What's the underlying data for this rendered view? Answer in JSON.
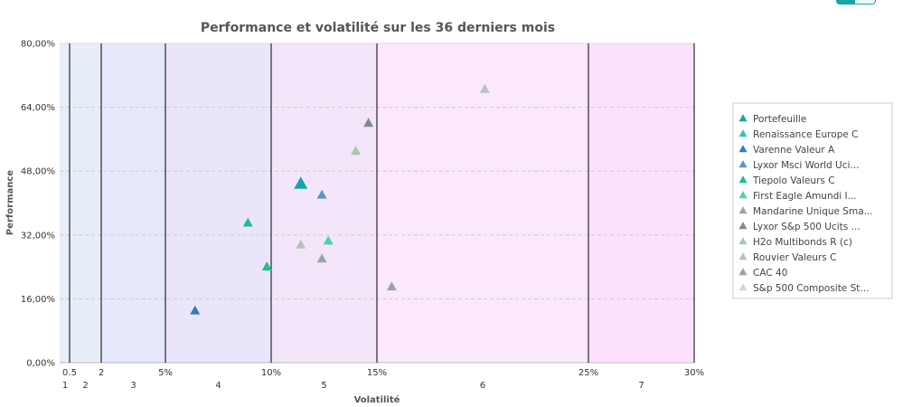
{
  "colors": {
    "bands": [
      "#e8eef8",
      "#e6e8fc",
      "#ebe5fb",
      "#f3e6fa",
      "#fbe8fb",
      "#fde0fd"
    ],
    "band_lines": "#000000",
    "grid": "#cccccc"
  },
  "chart_data": {
    "type": "scatter",
    "title": "Performance et volatilité sur les 36 derniers mois",
    "xlabel": "Volatilité",
    "ylabel": "Performance",
    "xaxis": {
      "boundaries": [
        0,
        0.5,
        2,
        5,
        10,
        15,
        25,
        30
      ],
      "ticks": [
        {
          "value": 0.5,
          "label": "0.5"
        },
        {
          "value": 2,
          "label": "2"
        },
        {
          "value": 5,
          "label": "5%"
        },
        {
          "value": 10,
          "label": "10%"
        },
        {
          "value": 15,
          "label": "15%"
        },
        {
          "value": 25,
          "label": "25%"
        },
        {
          "value": 30,
          "label": "30%"
        }
      ],
      "risk_classes": [
        "1",
        "2",
        "3",
        "4",
        "5",
        "6",
        "7"
      ]
    },
    "yaxis": {
      "range": [
        0,
        80
      ],
      "ticks": [
        {
          "value": 0,
          "label": "0,00%"
        },
        {
          "value": 16,
          "label": "16,00%"
        },
        {
          "value": 32,
          "label": "32,00%"
        },
        {
          "value": 48,
          "label": "48,00%"
        },
        {
          "value": 64,
          "label": "64,00%"
        },
        {
          "value": 80,
          "label": "80,00%"
        }
      ]
    },
    "grid": true,
    "legend_position": "right",
    "series": [
      {
        "name": "Portefeuille",
        "color": "#16a5a5",
        "size": "large",
        "points": [
          {
            "x": 11.4,
            "y": 44.8
          }
        ]
      },
      {
        "name": "Renaissance Europe C",
        "color": "#2ec4c4",
        "points": []
      },
      {
        "name": "Varenne Valeur A",
        "color": "#2e7fb8",
        "points": [
          {
            "x": 6.4,
            "y": 13.0
          }
        ]
      },
      {
        "name": "Lyxor Msci World Uci...",
        "color": "#5b94c6",
        "points": [
          {
            "x": 12.4,
            "y": 42.0
          }
        ]
      },
      {
        "name": "Tiepolo Valeurs C",
        "color": "#1cc08a",
        "points": [
          {
            "x": 8.9,
            "y": 35.0
          },
          {
            "x": 9.8,
            "y": 24.0
          }
        ]
      },
      {
        "name": "First Eagle Amundi I...",
        "color": "#44d6a7",
        "points": [
          {
            "x": 12.7,
            "y": 30.5
          }
        ]
      },
      {
        "name": "Mandarine Unique Sma...",
        "color": "#9aa6a4",
        "points": [
          {
            "x": 12.4,
            "y": 26.0
          }
        ]
      },
      {
        "name": "Lyxor S&p 500 Ucits ...",
        "color": "#7f8a88",
        "points": [
          {
            "x": 14.6,
            "y": 60.0
          }
        ]
      },
      {
        "name": "H2o Multibonds R (c)",
        "color": "#a8c8ac",
        "points": [
          {
            "x": 14.0,
            "y": 53.0
          }
        ]
      },
      {
        "name": "Rouvier Valeurs C",
        "color": "#b7c1bf",
        "points": [
          {
            "x": 11.4,
            "y": 29.5
          },
          {
            "x": 20.1,
            "y": 68.5
          }
        ]
      },
      {
        "name": "CAC 40",
        "color": "#99a4a2",
        "points": [
          {
            "x": 15.7,
            "y": 19.0
          }
        ]
      },
      {
        "name": "S&p 500 Composite St...",
        "color": "#c5dec8",
        "points": []
      }
    ]
  }
}
